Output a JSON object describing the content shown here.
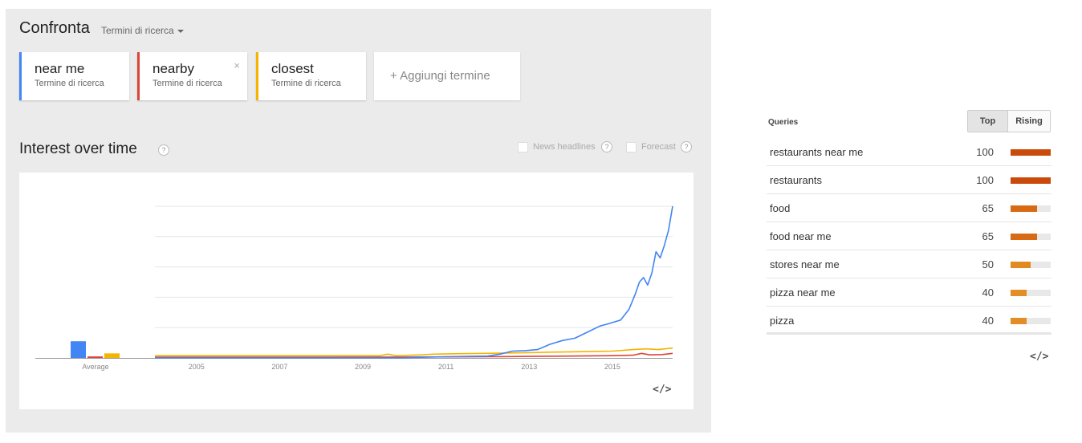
{
  "compare": {
    "title": "Confronta",
    "search_type": "Termini di ricerca",
    "add_term": "+ Aggiungi termine",
    "terms": [
      {
        "name": "near me",
        "subtitle": "Termine di ricerca",
        "color": "#4285f4"
      },
      {
        "name": "nearby",
        "subtitle": "Termine di ricerca",
        "color": "#db4437",
        "close": "×"
      },
      {
        "name": "closest",
        "subtitle": "Termine di ricerca",
        "color": "#f4b400"
      }
    ]
  },
  "interest": {
    "title": "Interest over time",
    "help": "?",
    "news_headlines": "News headlines",
    "forecast": "Forecast",
    "embed": "</>"
  },
  "chart_data": {
    "type": "line",
    "x_ticks": [
      "2005",
      "2007",
      "2009",
      "2011",
      "2013",
      "2015"
    ],
    "xlim": [
      2004,
      2016.45
    ],
    "ylim": [
      0,
      100
    ],
    "grid": true,
    "average_label": "Average",
    "averages": [
      {
        "name": "near me",
        "value": 11,
        "color": "#4285f4"
      },
      {
        "name": "nearby",
        "value": 1,
        "color": "#db4437"
      },
      {
        "name": "closest",
        "value": 3,
        "color": "#f4b400"
      }
    ],
    "series": [
      {
        "name": "near me",
        "color": "#4285f4",
        "points": [
          [
            2004,
            0
          ],
          [
            2006,
            0
          ],
          [
            2008,
            0
          ],
          [
            2010,
            0
          ],
          [
            2010.5,
            0.5
          ],
          [
            2011,
            0.8
          ],
          [
            2011.5,
            1
          ],
          [
            2012,
            1.2
          ],
          [
            2012.3,
            2.5
          ],
          [
            2012.6,
            4.5
          ],
          [
            2012.9,
            4.8
          ],
          [
            2013.2,
            5.5
          ],
          [
            2013.5,
            9
          ],
          [
            2013.8,
            11.5
          ],
          [
            2014.1,
            13
          ],
          [
            2014.4,
            17
          ],
          [
            2014.7,
            21
          ],
          [
            2014.9,
            22.5
          ],
          [
            2015.2,
            25
          ],
          [
            2015.4,
            32
          ],
          [
            2015.55,
            42
          ],
          [
            2015.65,
            50
          ],
          [
            2015.75,
            53
          ],
          [
            2015.85,
            48
          ],
          [
            2015.95,
            56
          ],
          [
            2016.05,
            70
          ],
          [
            2016.15,
            66
          ],
          [
            2016.25,
            74
          ],
          [
            2016.35,
            84
          ],
          [
            2016.45,
            100
          ]
        ]
      },
      {
        "name": "nearby",
        "color": "#db4437",
        "points": [
          [
            2004,
            0.5
          ],
          [
            2008,
            0.5
          ],
          [
            2010,
            0.6
          ],
          [
            2011,
            0.7
          ],
          [
            2012,
            0.8
          ],
          [
            2013,
            1
          ],
          [
            2014,
            1.2
          ],
          [
            2015,
            1.5
          ],
          [
            2015.5,
            1.8
          ],
          [
            2015.7,
            3
          ],
          [
            2015.9,
            2
          ],
          [
            2016.2,
            2.2
          ],
          [
            2016.45,
            3
          ]
        ]
      },
      {
        "name": "closest",
        "color": "#f4b400",
        "points": [
          [
            2004,
            1.5
          ],
          [
            2009.4,
            1.5
          ],
          [
            2009.6,
            2.5
          ],
          [
            2009.8,
            1.5
          ],
          [
            2010.4,
            2
          ],
          [
            2010.7,
            2.5
          ],
          [
            2011.3,
            2.8
          ],
          [
            2012,
            3
          ],
          [
            2013,
            3.5
          ],
          [
            2013.5,
            3.8
          ],
          [
            2014,
            4
          ],
          [
            2014.5,
            4.3
          ],
          [
            2015,
            4.5
          ],
          [
            2015.5,
            5.5
          ],
          [
            2015.8,
            6
          ],
          [
            2016.1,
            5.5
          ],
          [
            2016.45,
            6.5
          ]
        ]
      }
    ]
  },
  "queries": {
    "label": "Queries",
    "top": "Top",
    "rising": "Rising",
    "embed": "</>",
    "items": [
      {
        "text": "restaurants near me",
        "value": "100",
        "pct": 100,
        "color": "#c94a0a"
      },
      {
        "text": "restaurants",
        "value": "100",
        "pct": 100,
        "color": "#c94a0a"
      },
      {
        "text": "food",
        "value": "65",
        "pct": 65,
        "color": "#d96a14"
      },
      {
        "text": "food near me",
        "value": "65",
        "pct": 65,
        "color": "#d96a14"
      },
      {
        "text": "stores near me",
        "value": "50",
        "pct": 50,
        "color": "#e08a20"
      },
      {
        "text": "pizza near me",
        "value": "40",
        "pct": 40,
        "color": "#e38d26"
      },
      {
        "text": "pizza",
        "value": "40",
        "pct": 40,
        "color": "#e38d26"
      }
    ]
  }
}
